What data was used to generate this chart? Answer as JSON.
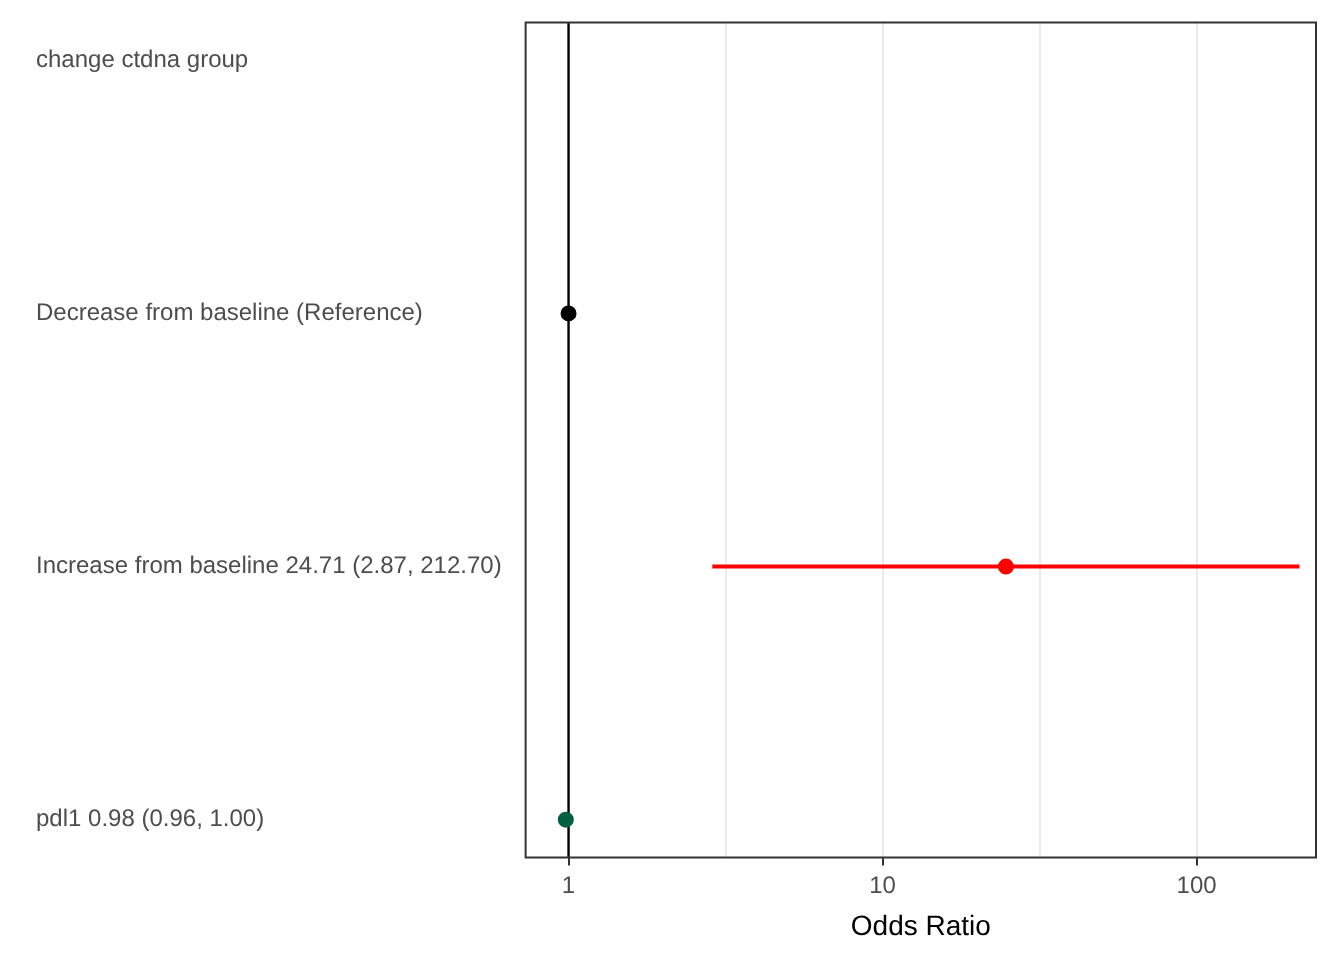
{
  "chart_data": {
    "type": "scatter",
    "orientation": "horizontal",
    "xlabel": "Odds Ratio",
    "categories": [
      "change ctdna group",
      "Decrease from baseline (Reference)",
      "Increase from baseline 24.71 (2.87, 212.70)",
      "pdl1 0.98 (0.96, 1.00)"
    ],
    "values": [
      null,
      1,
      24.71,
      0.98
    ],
    "errors": [
      null,
      null,
      [
        2.87,
        212.7
      ],
      [
        0.96,
        1.0
      ]
    ],
    "colors": [
      null,
      "#000000",
      "#ff0000",
      "#006040"
    ],
    "log": "x",
    "xlim": [
      0.73,
      240
    ],
    "xticks": [
      1,
      {
        "value": 3.162,
        "label": null
      },
      10,
      {
        "value": 31.62,
        "label": null
      },
      100
    ],
    "grid": "x",
    "legend": false,
    "marker": "circle",
    "ref_lines": [
      {
        "axis": "x",
        "value": 1,
        "color": "#000000"
      }
    ]
  }
}
